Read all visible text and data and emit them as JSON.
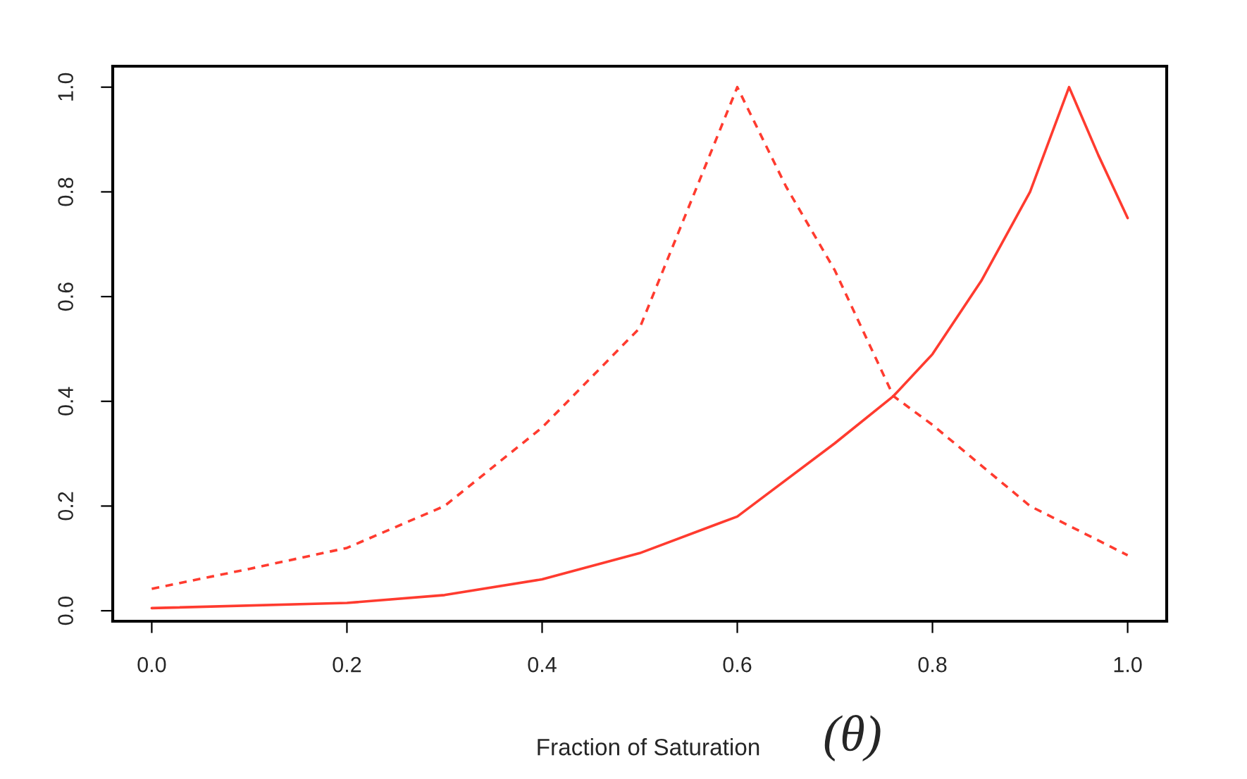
{
  "chart_data": {
    "type": "line",
    "xlabel": "Fraction of Saturation",
    "annotations": [
      "(θ)"
    ],
    "xlim": [
      -0.04,
      1.04
    ],
    "ylim": [
      -0.02,
      1.04
    ],
    "xticks": [
      {
        "value": 0,
        "label": "0.0"
      },
      0.2,
      0.4,
      0.6,
      0.8,
      {
        "value": 1,
        "label": "1.0"
      }
    ],
    "yticks": [
      {
        "value": 0,
        "label": "0.0"
      },
      0.2,
      0.4,
      0.6,
      0.8,
      {
        "value": 1,
        "label": "1.0"
      }
    ],
    "grid": false,
    "legend": false,
    "series": [
      {
        "color": "#ff3b2f",
        "line_style": "dashed",
        "x": [
          0,
          0.1,
          0.2,
          0.3,
          0.4,
          0.5,
          0.55,
          0.6,
          0.65,
          0.7,
          0.76,
          0.8,
          0.9,
          1.0
        ],
        "values": [
          0.042,
          0.08,
          0.12,
          0.2,
          0.35,
          0.54,
          0.77,
          1.0,
          0.81,
          0.65,
          0.41,
          0.355,
          0.2,
          0.106
        ]
      },
      {
        "color": "#ff3b2f",
        "line_style": "solid",
        "x": [
          0,
          0.2,
          0.3,
          0.4,
          0.5,
          0.6,
          0.7,
          0.76,
          0.8,
          0.85,
          0.9,
          0.94,
          0.97,
          1.0
        ],
        "values": [
          0.005,
          0.015,
          0.03,
          0.06,
          0.11,
          0.18,
          0.32,
          0.41,
          0.49,
          0.63,
          0.8,
          1.0,
          0.87,
          0.75
        ]
      }
    ]
  }
}
